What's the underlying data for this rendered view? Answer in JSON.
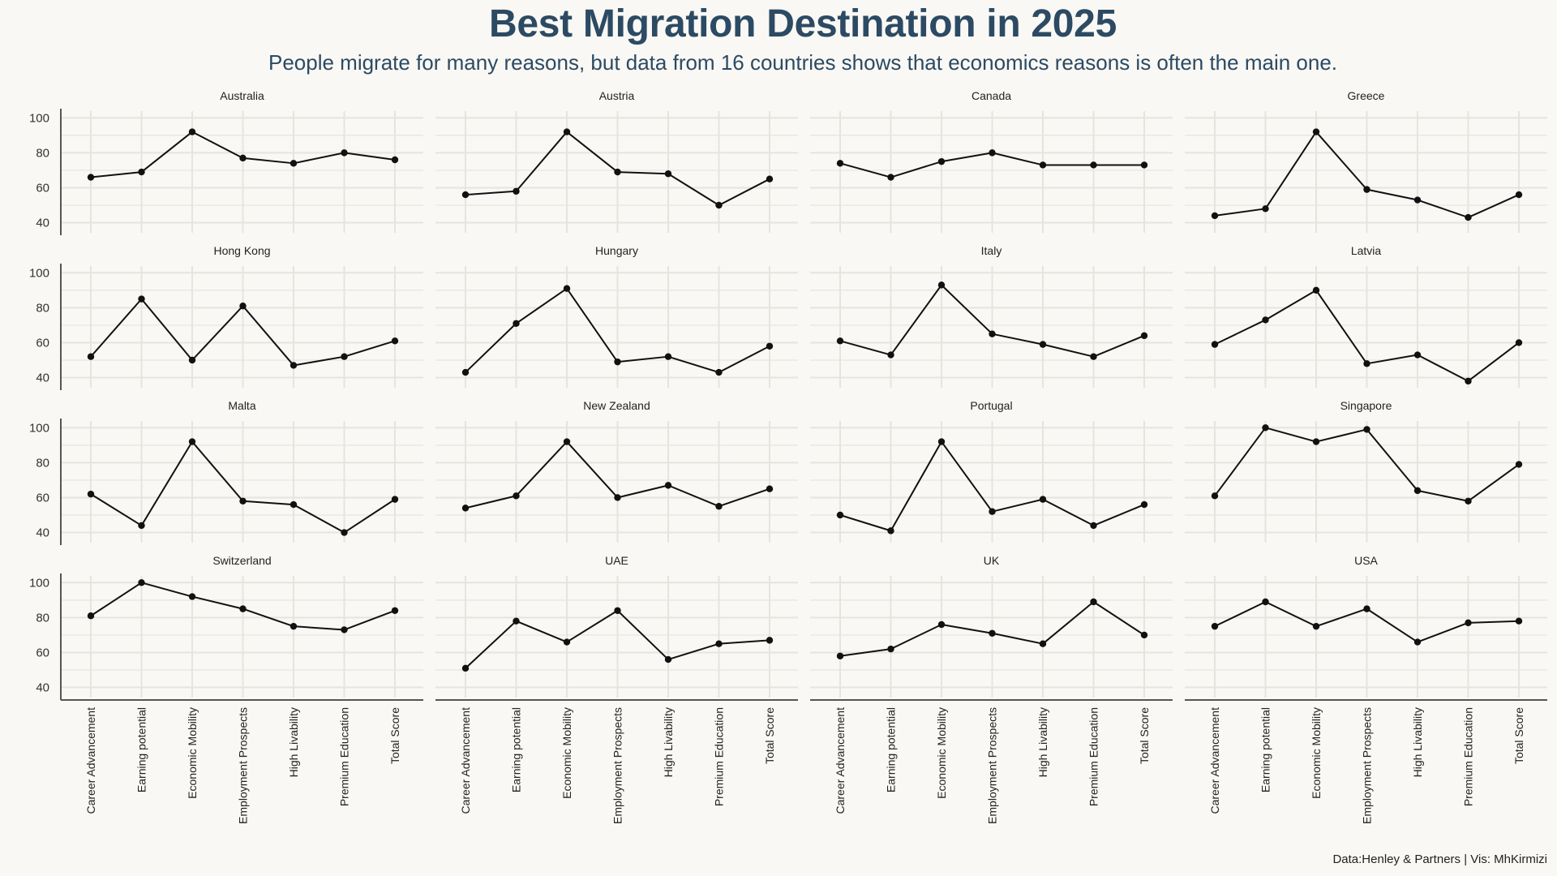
{
  "title": "Best Migration Destination in 2025",
  "subtitle": "People migrate for many reasons, but data from 16 countries shows that economics reasons is often the main one.",
  "caption": "Data:Henley & Partners | Vis: MhKirmizi",
  "chart_data": {
    "type": "line",
    "layout": "facet-grid 4x4",
    "categories": [
      "Career Advancement",
      "Earning potential",
      "Economic Mobility",
      "Employment Prospects",
      "High Livability",
      "Premium Education",
      "Total Score"
    ],
    "y_ticks": [
      40,
      60,
      80,
      100
    ],
    "ylim": [
      37,
      102
    ],
    "grid": true,
    "colors": {
      "line": "#111111",
      "point": "#111111",
      "grid": "#e6e4df",
      "axis": "#555555",
      "title": "#2c4a63"
    },
    "series": [
      {
        "name": "Australia",
        "values": [
          66,
          69,
          92,
          77,
          74,
          80,
          76
        ]
      },
      {
        "name": "Austria",
        "values": [
          56,
          58,
          92,
          69,
          68,
          50,
          65
        ]
      },
      {
        "name": "Canada",
        "values": [
          74,
          66,
          75,
          80,
          73,
          73,
          73
        ]
      },
      {
        "name": "Greece",
        "values": [
          44,
          48,
          92,
          59,
          53,
          43,
          56
        ]
      },
      {
        "name": "Hong Kong",
        "values": [
          52,
          85,
          50,
          81,
          47,
          52,
          61
        ]
      },
      {
        "name": "Hungary",
        "values": [
          43,
          71,
          91,
          49,
          52,
          43,
          58
        ]
      },
      {
        "name": "Italy",
        "values": [
          61,
          53,
          93,
          65,
          59,
          52,
          64
        ]
      },
      {
        "name": "Latvia",
        "values": [
          59,
          73,
          90,
          48,
          53,
          38,
          60
        ]
      },
      {
        "name": "Malta",
        "values": [
          62,
          44,
          92,
          58,
          56,
          40,
          59
        ]
      },
      {
        "name": "New Zealand",
        "values": [
          54,
          61,
          92,
          60,
          67,
          55,
          65
        ]
      },
      {
        "name": "Portugal",
        "values": [
          50,
          41,
          92,
          52,
          59,
          44,
          56
        ]
      },
      {
        "name": "Singapore",
        "values": [
          61,
          100,
          92,
          99,
          64,
          58,
          79
        ]
      },
      {
        "name": "Switzerland",
        "values": [
          81,
          100,
          92,
          85,
          75,
          73,
          84
        ]
      },
      {
        "name": "UAE",
        "values": [
          51,
          78,
          66,
          84,
          56,
          65,
          67
        ]
      },
      {
        "name": "UK",
        "values": [
          58,
          62,
          76,
          71,
          65,
          89,
          70
        ]
      },
      {
        "name": "USA",
        "values": [
          75,
          89,
          75,
          85,
          66,
          77,
          78
        ]
      }
    ]
  }
}
